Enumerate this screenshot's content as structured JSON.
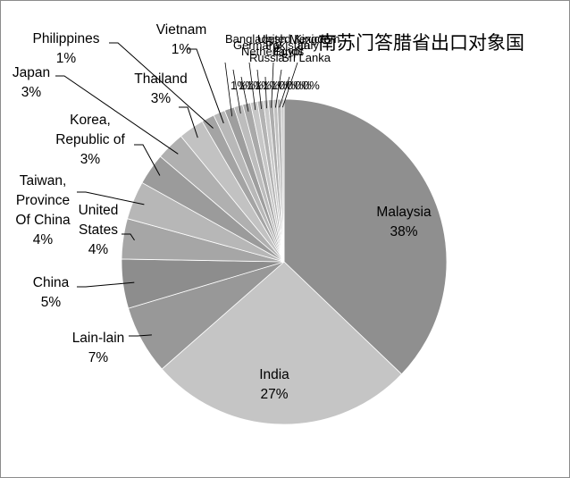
{
  "chart_data": {
    "type": "pie",
    "title": "南苏门答腊省出口对象国",
    "start_angle_deg": 0,
    "direction": "clockwise",
    "slices": [
      {
        "label": "Malaysia",
        "pct_label": "38%",
        "value": 38.0,
        "color": "#8f8f8f"
      },
      {
        "label": "India",
        "pct_label": "27%",
        "value": 27.0,
        "color": "#c5c5c5"
      },
      {
        "label": "Lain-lain",
        "pct_label": "7%",
        "value": 7.0,
        "color": "#989898"
      },
      {
        "label": "China",
        "pct_label": "5%",
        "value": 5.0,
        "color": "#8d8d8d"
      },
      {
        "label": "United States",
        "pct_label": "4%",
        "value": 4.1,
        "color": "#a6a6a6"
      },
      {
        "label": "Taiwan, Province Of China",
        "pct_label": "4%",
        "value": 3.9,
        "color": "#b7b7b7"
      },
      {
        "label": "Korea, Republic of",
        "pct_label": "3%",
        "value": 3.2,
        "color": "#9b9b9b"
      },
      {
        "label": "Japan",
        "pct_label": "3%",
        "value": 2.9,
        "color": "#b0b0b0"
      },
      {
        "label": "Thailand",
        "pct_label": "3%",
        "value": 2.6,
        "color": "#c2c2c2"
      },
      {
        "label": "Philippines",
        "pct_label": "1%",
        "value": 1.3,
        "color": "#a4a4a4"
      },
      {
        "label": "Vietnam",
        "pct_label": "1%",
        "value": 1.2,
        "color": "#b8b8b8"
      },
      {
        "label": "Bangladesh",
        "pct_label": "1%",
        "value": 1.0,
        "color": "#9e9e9e"
      },
      {
        "label": "Germany",
        "pct_label": "1%",
        "value": 0.9,
        "color": "#bdbdbd"
      },
      {
        "label": "Netherlands",
        "pct_label": "1%",
        "value": 0.8,
        "color": "#a9a9a9"
      },
      {
        "label": "Russia",
        "pct_label": "1%",
        "value": 0.7,
        "color": "#c7c7c7"
      },
      {
        "label": "United Kingdom",
        "pct_label": "1%",
        "value": 0.6,
        "color": "#b3b3b3"
      },
      {
        "label": "Pakistan",
        "pct_label": "1%",
        "value": 0.5,
        "color": "#c9c9c9"
      },
      {
        "label": "Egypt",
        "pct_label": "0%",
        "value": 0.5,
        "color": "#adadad"
      },
      {
        "label": "Sri Lanka",
        "pct_label": "0%",
        "value": 0.4,
        "color": "#c0c0c0"
      },
      {
        "label": "Mexico",
        "pct_label": "0%",
        "value": 0.4,
        "color": "#b5b5b5"
      },
      {
        "label": "Italy",
        "pct_label": "0%",
        "value": 0.3,
        "color": "#cbcbcb"
      }
    ]
  }
}
